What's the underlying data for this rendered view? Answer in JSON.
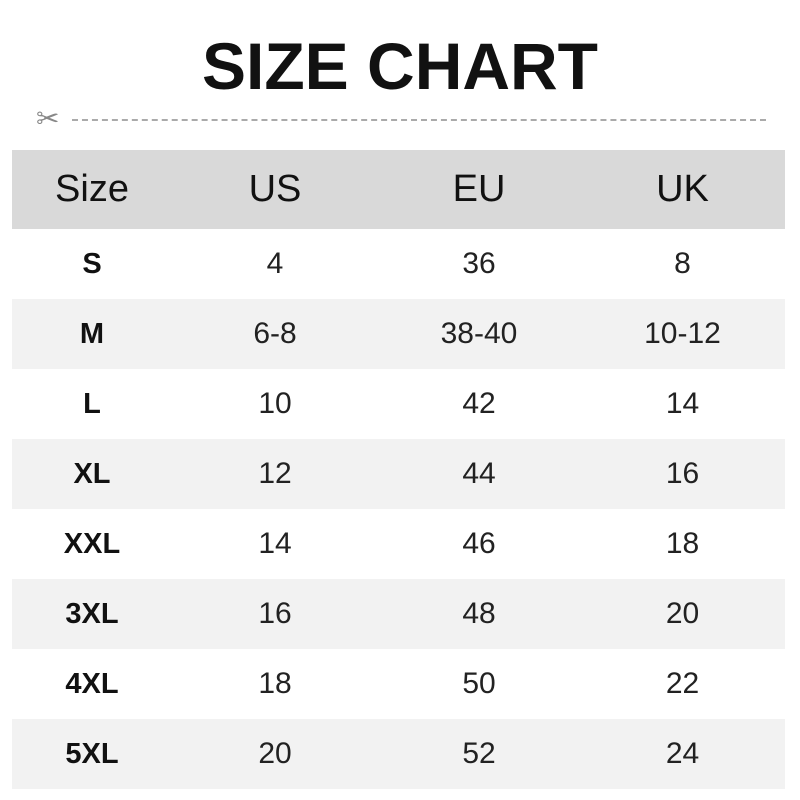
{
  "title": "SIZE CHART",
  "headers": [
    "Size",
    "US",
    "EU",
    "UK"
  ],
  "rows": [
    [
      "S",
      "4",
      "36",
      "8"
    ],
    [
      "M",
      "6-8",
      "38-40",
      "10-12"
    ],
    [
      "L",
      "10",
      "42",
      "14"
    ],
    [
      "XL",
      "12",
      "44",
      "16"
    ],
    [
      "XXL",
      "14",
      "46",
      "18"
    ],
    [
      "3XL",
      "16",
      "48",
      "20"
    ],
    [
      "4XL",
      "18",
      "50",
      "22"
    ],
    [
      "5XL",
      "20",
      "52",
      "24"
    ]
  ],
  "colors": {
    "header_bg": "#d9d9d9",
    "alt_row_bg": "#f2f2f2"
  }
}
